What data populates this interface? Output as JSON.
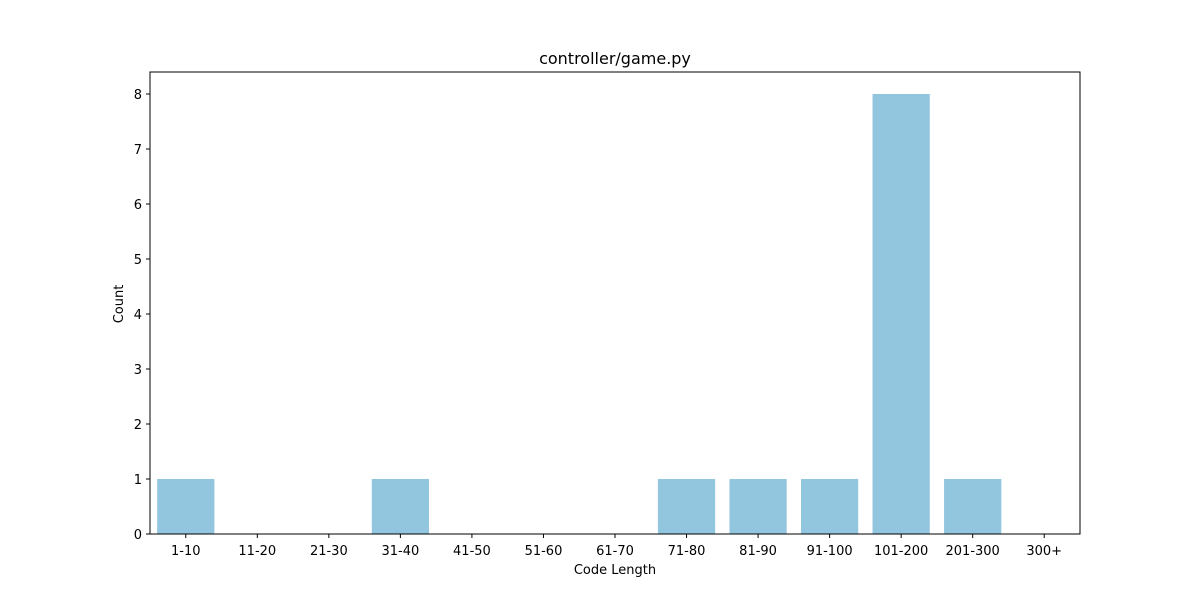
{
  "chart_data": {
    "type": "bar",
    "title": "controller/game.py",
    "xlabel": "Code Length",
    "ylabel": "Count",
    "categories": [
      "1-10",
      "11-20",
      "21-30",
      "31-40",
      "41-50",
      "51-60",
      "61-70",
      "71-80",
      "81-90",
      "91-100",
      "101-200",
      "201-300",
      "300+"
    ],
    "values": [
      1,
      0,
      0,
      1,
      0,
      0,
      0,
      1,
      1,
      1,
      8,
      1,
      0
    ],
    "ylim": [
      0,
      8.4
    ],
    "yticks": [
      "0",
      "1",
      "2",
      "3",
      "4",
      "5",
      "6",
      "7",
      "8"
    ],
    "grid": false,
    "legend": "none",
    "bar_color": "#92C5DE",
    "axis_color": "#000000"
  }
}
